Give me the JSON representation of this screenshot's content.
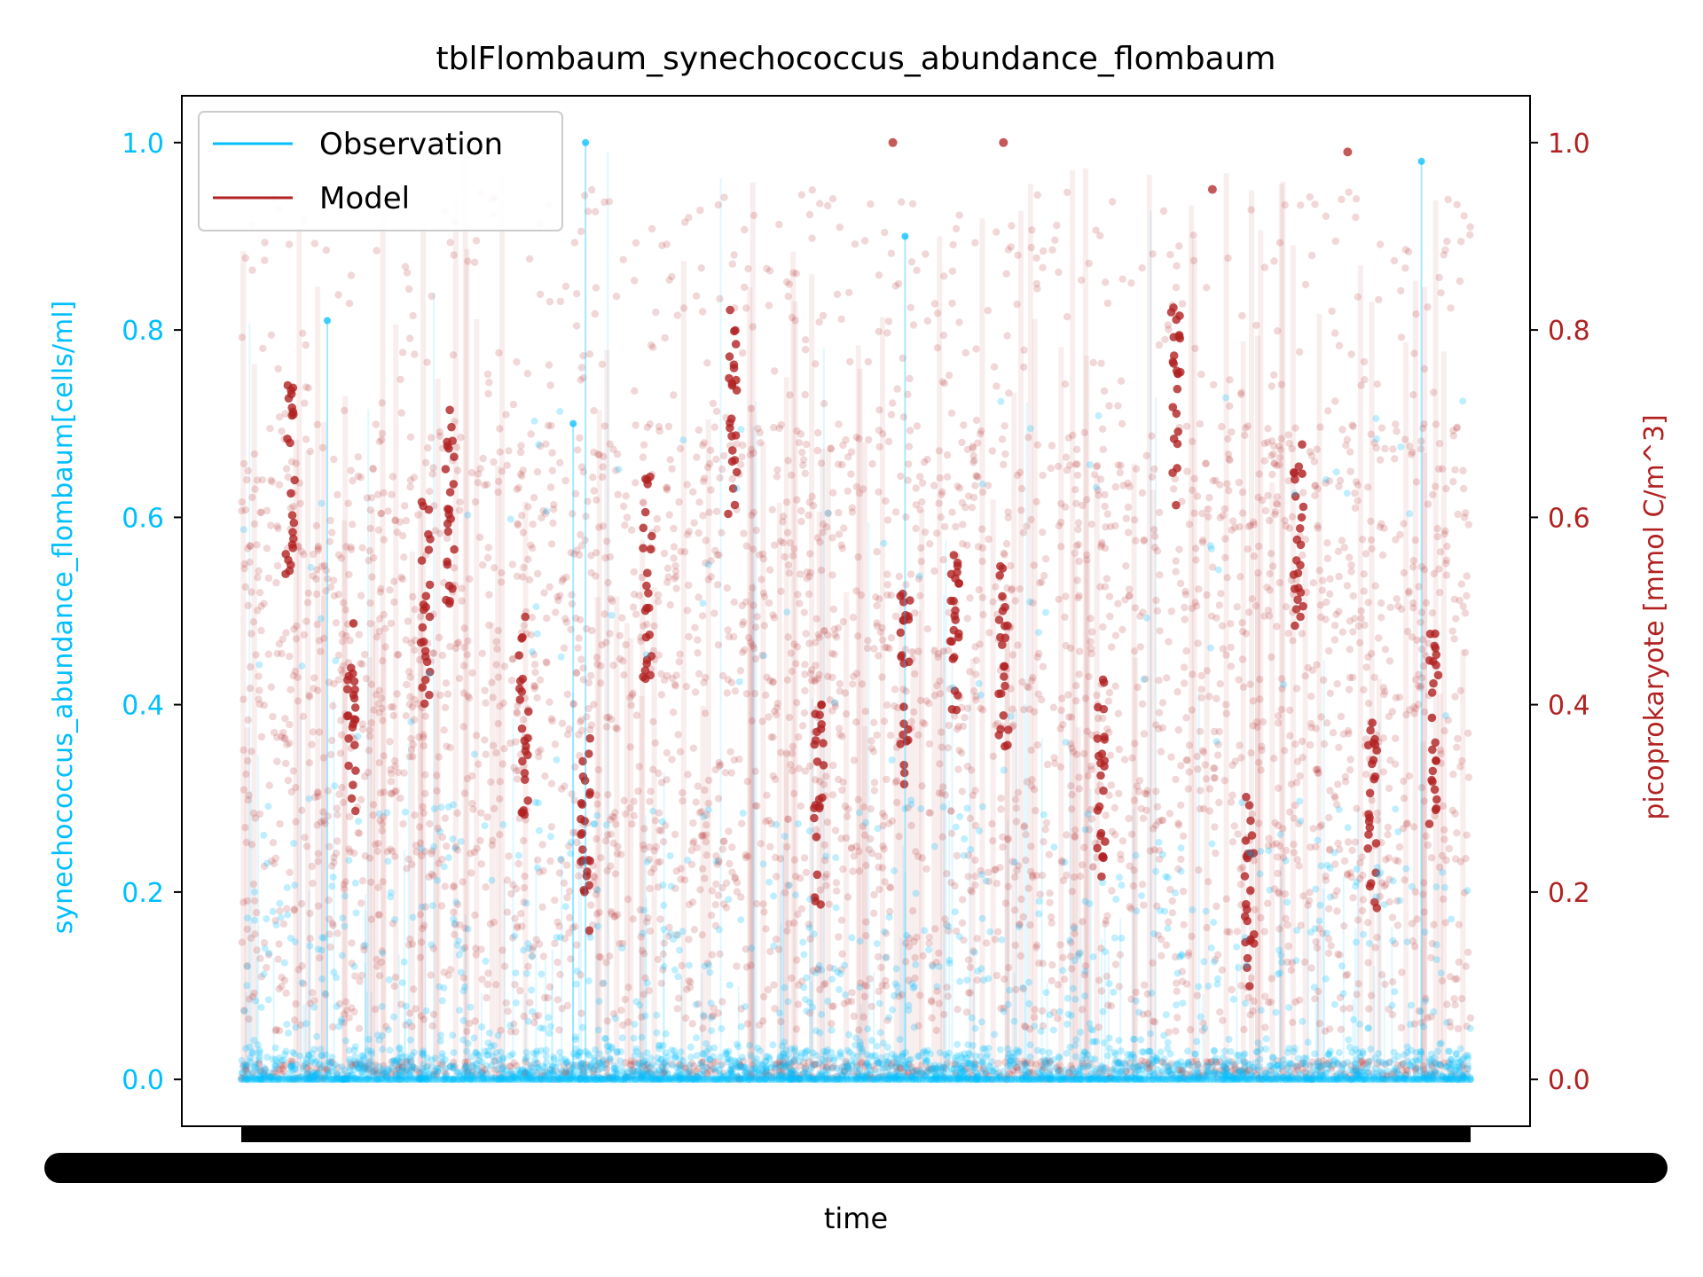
{
  "chart_data": {
    "type": "scatter",
    "title": "tblFlombaum_synechococcus_abundance_flombaum",
    "xlabel": "time",
    "ylabel_left": "synechococcus_abundance_flombaum[cells/ml]",
    "ylabel_right": "picoprokaryote [mmol C/m^3]",
    "ylim_left": [
      -0.05,
      1.05
    ],
    "ylim_right": [
      -0.05,
      1.05
    ],
    "yticks_left": [
      "0.0",
      "0.2",
      "0.4",
      "0.6",
      "0.8",
      "1.0"
    ],
    "yticks_right": [
      "0.0",
      "0.2",
      "0.4",
      "0.6",
      "0.8",
      "1.0"
    ],
    "x_tick_labels_note": "dense overlapping date tick labels rendered as a solid black band",
    "legend": {
      "placement": "upper-left",
      "entries": [
        "Observation",
        "Model"
      ]
    },
    "colors": {
      "observation": "#00bfff",
      "model": "#b22222"
    },
    "series": [
      {
        "name": "Observation",
        "axis": "left",
        "note": "normalized abundance, mostly concentrated near 0.0 with sparse peaks up to 1.0",
        "peaks": [
          {
            "x": 0.27,
            "y": 0.7
          },
          {
            "x": 0.07,
            "y": 0.81
          },
          {
            "x": 0.28,
            "y": 1.0
          },
          {
            "x": 0.54,
            "y": 0.9
          },
          {
            "x": 0.96,
            "y": 0.98
          }
        ]
      },
      {
        "name": "Model",
        "axis": "right",
        "note": "normalized picoprokaryote carbon, scattered broadly between 0.0 and 1.0",
        "peaks": [
          {
            "x": 0.53,
            "y": 1.0
          },
          {
            "x": 0.62,
            "y": 1.0
          },
          {
            "x": 0.79,
            "y": 0.95
          },
          {
            "x": 0.9,
            "y": 0.99
          }
        ]
      }
    ]
  }
}
